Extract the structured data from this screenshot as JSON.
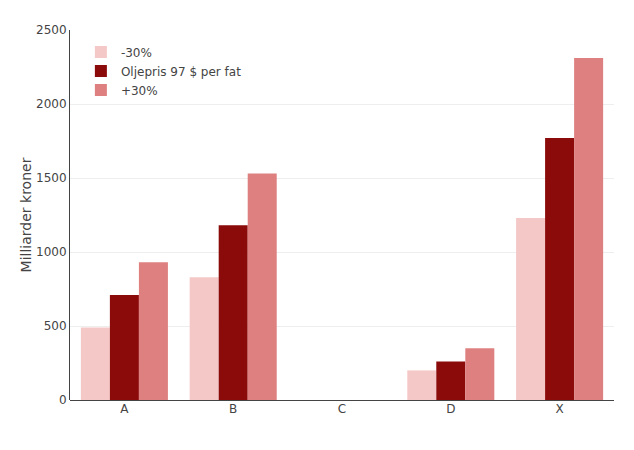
{
  "chart_data": {
    "type": "bar",
    "categories": [
      "A",
      "B",
      "C",
      "D",
      "X"
    ],
    "series": [
      {
        "name": "-30%",
        "color": "#f5c8c8",
        "values": [
          490,
          830,
          0,
          200,
          1230
        ]
      },
      {
        "name": "Oljepris 97 $ per fat",
        "color": "#8b0a0a",
        "values": [
          710,
          1180,
          0,
          260,
          1770
        ]
      },
      {
        "name": "+30%",
        "color": "#de8080",
        "values": [
          930,
          1530,
          0,
          350,
          2310
        ]
      }
    ],
    "ylabel": "Milliarder kroner",
    "ylim": [
      0,
      2500
    ],
    "yticks": [
      0,
      500,
      1000,
      1500,
      2000,
      2500
    ],
    "grid": true,
    "legend": "upper left"
  }
}
